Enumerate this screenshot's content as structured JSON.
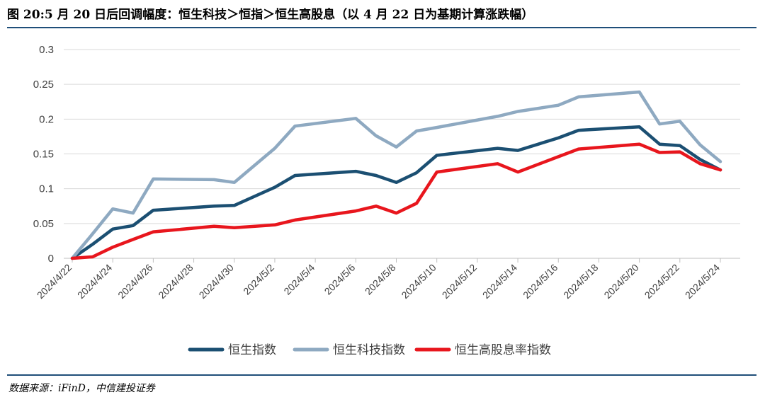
{
  "title": "图 20:5 月 20 日后回调幅度：恒生科技＞恒指＞恒生高股息（以 4 月 22 日为基期计算涨跌幅）",
  "source": "数据来源：iFinD，中信建投证券",
  "chart_data": {
    "type": "line",
    "x": [
      "2024/4/22",
      "2024/4/23",
      "2024/4/24",
      "2024/4/25",
      "2024/4/26",
      "2024/4/29",
      "2024/4/30",
      "2024/5/2",
      "2024/5/3",
      "2024/5/6",
      "2024/5/7",
      "2024/5/8",
      "2024/5/9",
      "2024/5/10",
      "2024/5/13",
      "2024/5/14",
      "2024/5/16",
      "2024/5/17",
      "2024/5/20",
      "2024/5/21",
      "2024/5/22",
      "2024/5/23",
      "2024/5/24"
    ],
    "x_ticks": [
      "2024/4/22",
      "2024/4/24",
      "2024/4/26",
      "2024/4/28",
      "2024/4/30",
      "2024/5/2",
      "2024/5/4",
      "2024/5/6",
      "2024/5/8",
      "2024/5/10",
      "2024/5/12",
      "2024/5/14",
      "2024/5/16",
      "2024/5/18",
      "2024/5/20",
      "2024/5/22",
      "2024/5/24"
    ],
    "y_ticks": [
      "0",
      "0.05",
      "0.1",
      "0.15",
      "0.2",
      "0.25",
      "0.3"
    ],
    "ylim": [
      0,
      0.3
    ],
    "grid": true,
    "legend_position": "bottom",
    "series": [
      {
        "name": "恒生指数",
        "color": "#1b4f72",
        "values": [
          0,
          0.02,
          0.042,
          0.047,
          0.069,
          0.075,
          0.076,
          0.102,
          0.119,
          0.125,
          0.119,
          0.109,
          0.123,
          0.148,
          0.158,
          0.155,
          0.173,
          0.184,
          0.189,
          0.164,
          0.162,
          0.142,
          0.127
        ]
      },
      {
        "name": "恒生科技指数",
        "color": "#8ea9c1",
        "values": [
          0,
          0.035,
          0.071,
          0.065,
          0.114,
          0.113,
          0.109,
          0.158,
          0.19,
          0.201,
          0.176,
          0.16,
          0.183,
          0.188,
          0.204,
          0.211,
          0.22,
          0.232,
          0.239,
          0.193,
          0.197,
          0.163,
          0.139
        ]
      },
      {
        "name": "恒生高股息率指数",
        "color": "#e8161d",
        "values": [
          0,
          0.002,
          0.016,
          0.027,
          0.038,
          0.046,
          0.044,
          0.048,
          0.055,
          0.068,
          0.075,
          0.065,
          0.079,
          0.124,
          0.136,
          0.124,
          0.146,
          0.157,
          0.164,
          0.152,
          0.153,
          0.136,
          0.127
        ]
      }
    ]
  }
}
